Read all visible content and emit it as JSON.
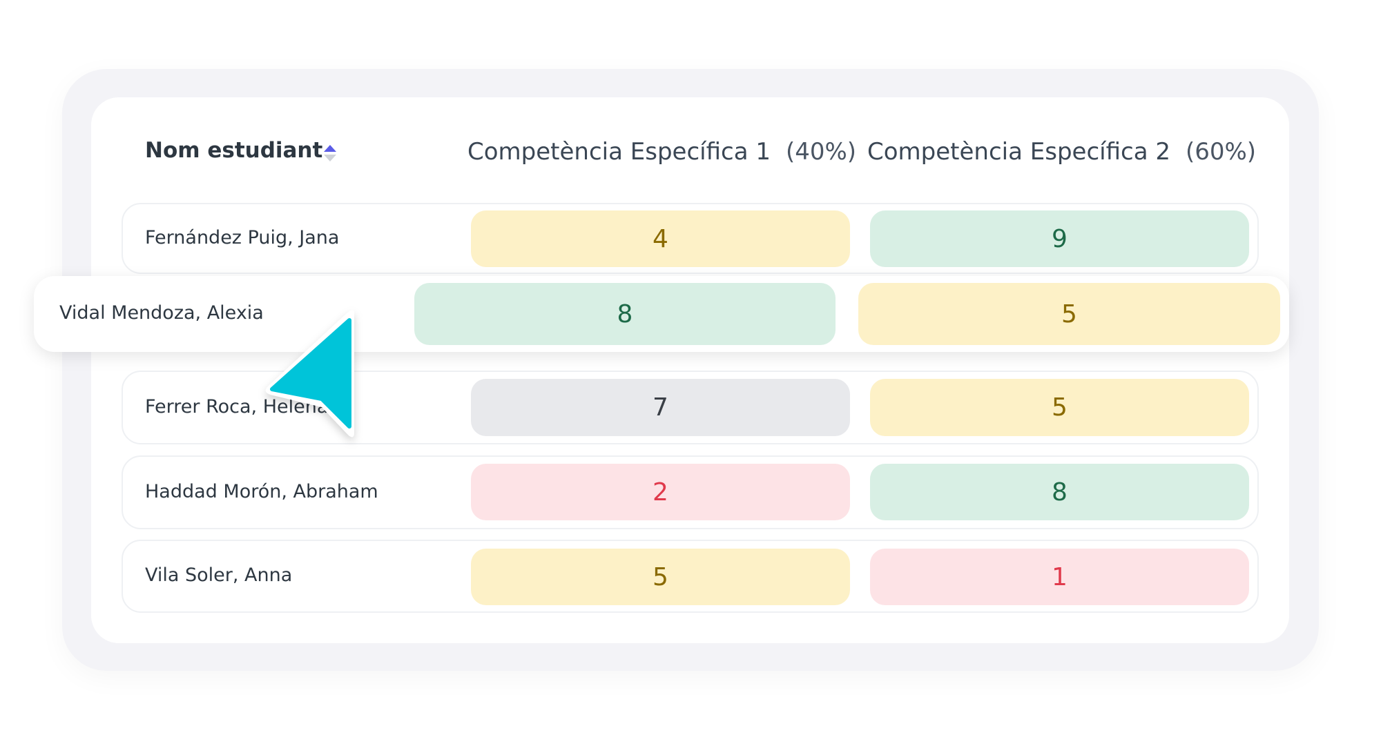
{
  "table": {
    "headers": {
      "name": "Nom estudiant",
      "col1": {
        "label": "Competència Específica 1",
        "weight": "(40%)"
      },
      "col2": {
        "label": "Competència Específica 2",
        "weight": "(60%)"
      }
    },
    "sort_icon": "sort-up-down-icon",
    "rows": [
      {
        "name": "Fernández Puig, Jana",
        "c1": "4",
        "c2": "9"
      },
      {
        "name": "Vidal Mendoza, Alexia",
        "c1": "8",
        "c2": "5"
      },
      {
        "name": "Ferrer Roca, Helena",
        "c1": "7",
        "c2": "5"
      },
      {
        "name": "Haddad Morón, Abraham",
        "c1": "2",
        "c2": "8"
      },
      {
        "name": "Vila Soler, Anna",
        "c1": "5",
        "c2": "1"
      }
    ]
  },
  "colors": {
    "cursor": "#00c4d9",
    "sort_active": "#5b5ce6",
    "yellow": "#fdf1c7",
    "green": "#d8efe4",
    "gray": "#e8e9ec",
    "red": "#fde3e6"
  }
}
